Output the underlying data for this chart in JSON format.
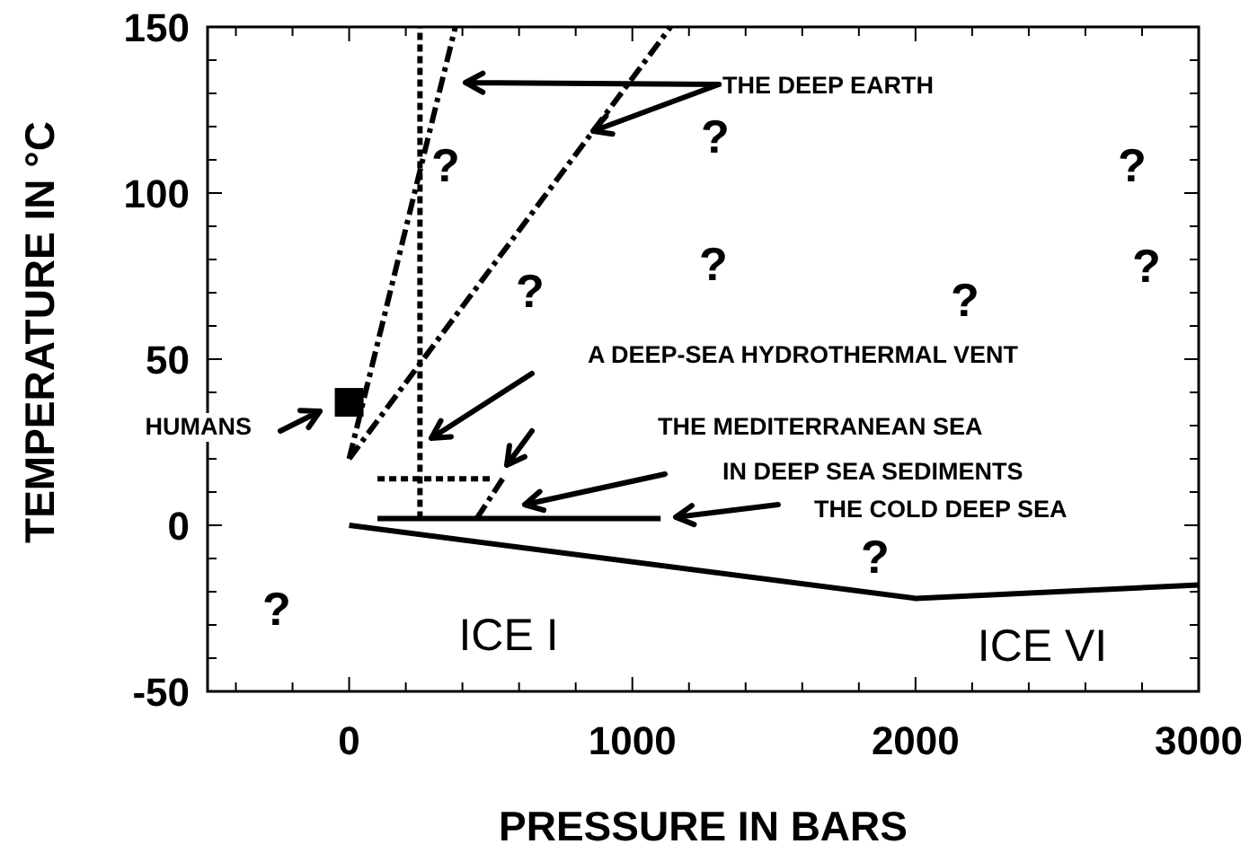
{
  "chart_data": {
    "type": "line",
    "xlabel": "PRESSURE IN BARS",
    "ylabel": "TEMPERATURE IN °C",
    "xlim": [
      -500,
      3000
    ],
    "ylim": [
      -50,
      150
    ],
    "xticks": [
      {
        "value": -400,
        "label": null
      },
      {
        "value": -200,
        "label": null
      },
      0,
      {
        "value": 200,
        "label": null
      },
      {
        "value": 400,
        "label": null
      },
      {
        "value": 600,
        "label": null
      },
      {
        "value": 800,
        "label": null
      },
      1000,
      {
        "value": 1200,
        "label": null
      },
      {
        "value": 1400,
        "label": null
      },
      {
        "value": 1600,
        "label": null
      },
      {
        "value": 1800,
        "label": null
      },
      2000,
      {
        "value": 2200,
        "label": null
      },
      {
        "value": 2400,
        "label": null
      },
      {
        "value": 2600,
        "label": null
      },
      {
        "value": 2800,
        "label": null
      },
      3000
    ],
    "yticks": [
      -50,
      {
        "value": -40,
        "label": null
      },
      {
        "value": -30,
        "label": null
      },
      {
        "value": -20,
        "label": null
      },
      {
        "value": -10,
        "label": null
      },
      0,
      {
        "value": 10,
        "label": null
      },
      {
        "value": 20,
        "label": null
      },
      {
        "value": 30,
        "label": null
      },
      {
        "value": 40,
        "label": null
      },
      50,
      {
        "value": 60,
        "label": null
      },
      {
        "value": 70,
        "label": null
      },
      {
        "value": 80,
        "label": null
      },
      {
        "value": 90,
        "label": null
      },
      100,
      {
        "value": 110,
        "label": null
      },
      {
        "value": 120,
        "label": null
      },
      {
        "value": 130,
        "label": null
      },
      {
        "value": 140,
        "label": null
      },
      150
    ],
    "series": [
      {
        "color": "#000000",
        "line_style": "solid",
        "x": [
          0,
          2000,
          3000
        ],
        "values": [
          0,
          -22,
          -18
        ]
      },
      {
        "color": "#000000",
        "line_style": "solid",
        "x": [
          100,
          1100
        ],
        "values": [
          2,
          2
        ]
      },
      {
        "color": "#000000",
        "line_style": "dotted",
        "x": [
          250,
          250
        ],
        "values": [
          2,
          150
        ]
      },
      {
        "color": "#000000",
        "line_style": "dotted",
        "x": [
          100,
          500
        ],
        "values": [
          14,
          14
        ]
      },
      {
        "color": "#000000",
        "line_style": "dashed",
        "x": [
          450,
          550
        ],
        "values": [
          2,
          15
        ]
      },
      {
        "color": "#000000",
        "line_style": "dashed",
        "x": [
          0,
          375
        ],
        "values": [
          20,
          150
        ]
      },
      {
        "color": "#000000",
        "line_style": "dashed",
        "x": [
          0,
          1135
        ],
        "values": [
          20,
          150
        ]
      },
      {
        "type": "scatter",
        "marker": "square",
        "color": "#000000",
        "x": [
          0
        ],
        "values": [
          37
        ]
      }
    ],
    "annotations": [
      "THE DEEP EARTH",
      "A DEEP-SEA HYDROTHERMAL VENT",
      "THE MEDITERRANEAN SEA",
      "IN DEEP SEA SEDIMENTS",
      "THE COLD DEEP SEA",
      "HUMANS",
      "?",
      "?",
      "?",
      "?",
      "?",
      "?",
      "?",
      "?",
      "?",
      "ICE I",
      "ICE VI"
    ]
  }
}
